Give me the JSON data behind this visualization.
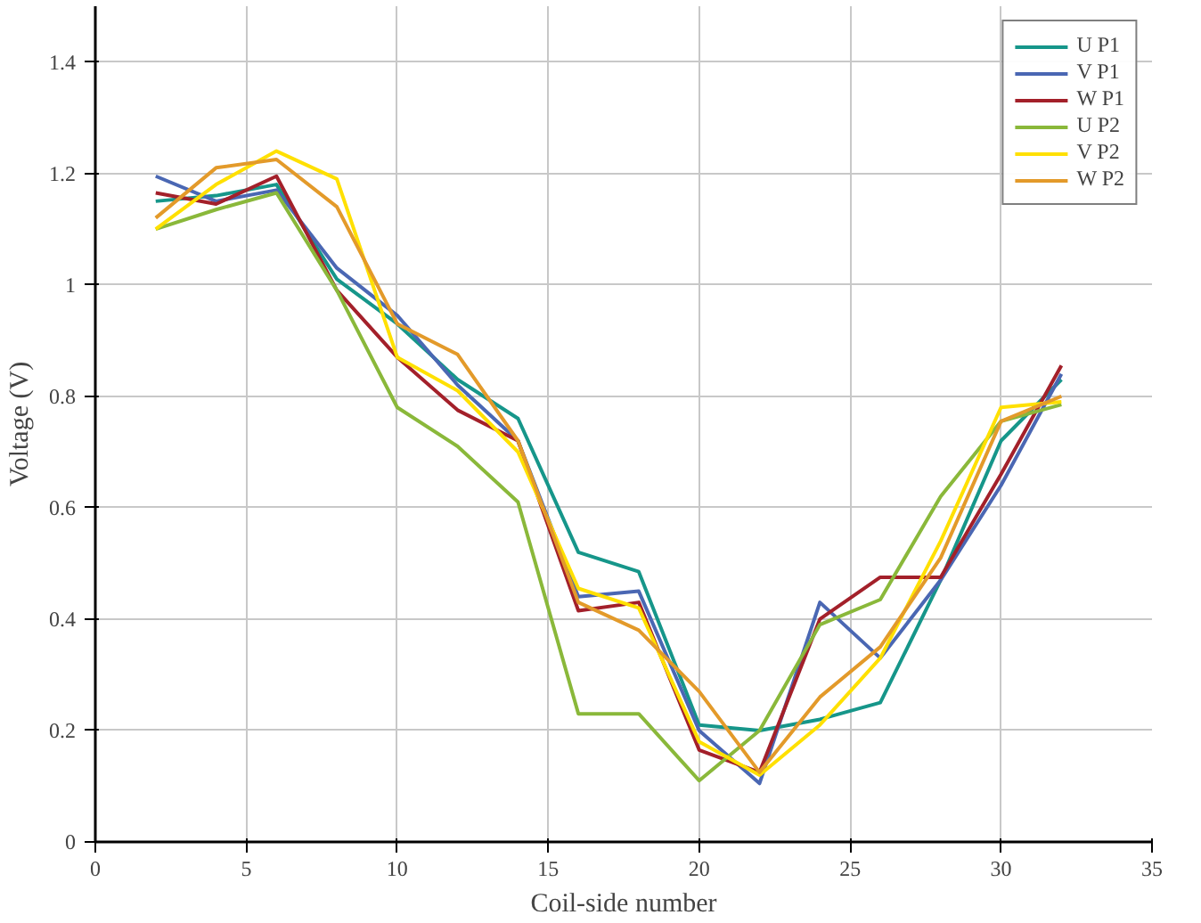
{
  "chart_data": {
    "type": "line",
    "xlabel": "Coil-side number",
    "ylabel": "Voltage (V)",
    "x": [
      2,
      4,
      6,
      8,
      10,
      12,
      14,
      16,
      18,
      20,
      22,
      24,
      26,
      28,
      30,
      32
    ],
    "series": [
      {
        "name": "U P1",
        "color": "#16968a",
        "values": [
          1.15,
          1.16,
          1.18,
          1.01,
          0.93,
          0.83,
          0.76,
          0.52,
          0.485,
          0.21,
          0.2,
          0.22,
          0.25,
          0.47,
          0.72,
          0.83
        ]
      },
      {
        "name": "V P1",
        "color": "#4a67b3",
        "values": [
          1.195,
          1.15,
          1.17,
          1.03,
          0.945,
          0.82,
          0.72,
          0.44,
          0.45,
          0.2,
          0.105,
          0.43,
          0.33,
          0.47,
          0.64,
          0.84
        ]
      },
      {
        "name": "W P1",
        "color": "#a3202a",
        "values": [
          1.165,
          1.145,
          1.195,
          0.99,
          0.87,
          0.775,
          0.72,
          0.415,
          0.43,
          0.165,
          0.125,
          0.4,
          0.475,
          0.475,
          0.66,
          0.855
        ]
      },
      {
        "name": "U P2",
        "color": "#8ab83a",
        "values": [
          1.1,
          1.135,
          1.165,
          0.99,
          0.78,
          0.71,
          0.61,
          0.23,
          0.23,
          0.11,
          0.2,
          0.39,
          0.435,
          0.62,
          0.755,
          0.785
        ]
      },
      {
        "name": "V P2",
        "color": "#ffe000",
        "values": [
          1.1,
          1.18,
          1.24,
          1.19,
          0.87,
          0.81,
          0.7,
          0.455,
          0.42,
          0.18,
          0.12,
          0.21,
          0.33,
          0.54,
          0.78,
          0.79
        ]
      },
      {
        "name": "W P2",
        "color": "#e39a2a",
        "values": [
          1.12,
          1.21,
          1.225,
          1.14,
          0.93,
          0.875,
          0.72,
          0.43,
          0.38,
          0.27,
          0.125,
          0.26,
          0.35,
          0.51,
          0.755,
          0.8
        ]
      }
    ],
    "xlim": [
      0,
      35
    ],
    "ylim": [
      0,
      1.5
    ],
    "xticks": [
      0,
      5,
      10,
      15,
      20,
      25,
      30,
      35
    ],
    "yticks": [
      0,
      0.2,
      0.4,
      0.6,
      0.8,
      {
        "value": 1,
        "label": "1"
      },
      1.2,
      1.4
    ],
    "grid": true,
    "legend": "top right",
    "marker": "none",
    "line_style": "solid"
  }
}
